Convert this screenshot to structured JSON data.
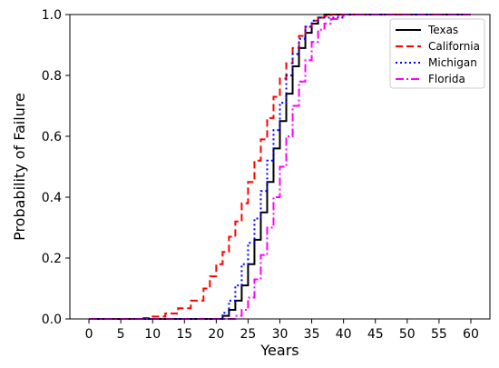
{
  "chart_data": {
    "type": "line",
    "title": "",
    "xlabel": "Years",
    "ylabel": "Probability of Failure",
    "xlim": [
      -3,
      63
    ],
    "ylim": [
      0,
      1
    ],
    "xticks": [
      0,
      5,
      10,
      15,
      20,
      25,
      30,
      35,
      40,
      45,
      50,
      55,
      60
    ],
    "yticks": [
      0.0,
      0.2,
      0.4,
      0.6,
      0.8,
      1.0
    ],
    "ytick_labels": [
      "0.0",
      "0.2",
      "0.4",
      "0.6",
      "0.8",
      "1.0"
    ],
    "grid": false,
    "legend_position": "top-right",
    "series": [
      {
        "name": "Texas",
        "color": "#000000",
        "dash": "solid",
        "x": [
          0,
          20,
          21,
          22,
          23,
          24,
          25,
          26,
          27,
          28,
          29,
          30,
          31,
          32,
          33,
          34,
          35,
          36,
          37,
          40,
          60
        ],
        "y": [
          0,
          0,
          0.01,
          0.03,
          0.06,
          0.11,
          0.18,
          0.26,
          0.35,
          0.45,
          0.56,
          0.65,
          0.74,
          0.83,
          0.89,
          0.94,
          0.97,
          0.99,
          1.0,
          1.0,
          1.0
        ]
      },
      {
        "name": "California",
        "color": "#ff0000",
        "dash": "dashed",
        "x": [
          0,
          5,
          8,
          10,
          12,
          14,
          16,
          18,
          19,
          20,
          21,
          22,
          23,
          24,
          25,
          26,
          27,
          28,
          29,
          30,
          31,
          32,
          33,
          34,
          35,
          36,
          37,
          38,
          40,
          60
        ],
        "y": [
          0,
          0,
          0.003,
          0.008,
          0.018,
          0.035,
          0.06,
          0.1,
          0.14,
          0.18,
          0.22,
          0.27,
          0.32,
          0.38,
          0.45,
          0.52,
          0.59,
          0.66,
          0.73,
          0.79,
          0.84,
          0.89,
          0.93,
          0.96,
          0.98,
          0.99,
          0.995,
          1.0,
          1.0,
          1.0
        ]
      },
      {
        "name": "Michigan",
        "color": "#0000ff",
        "dash": "dotted",
        "x": [
          0,
          20,
          21,
          22,
          23,
          24,
          25,
          26,
          27,
          28,
          29,
          30,
          31,
          32,
          33,
          34,
          35,
          36,
          40,
          60
        ],
        "y": [
          0,
          0,
          0.02,
          0.06,
          0.11,
          0.18,
          0.25,
          0.33,
          0.42,
          0.52,
          0.62,
          0.71,
          0.8,
          0.87,
          0.92,
          0.96,
          0.98,
          0.99,
          1.0,
          1.0
        ]
      },
      {
        "name": "Florida",
        "color": "#ff00ff",
        "dash": "dashdot",
        "x": [
          0,
          22,
          23,
          24,
          25,
          26,
          27,
          28,
          29,
          30,
          31,
          32,
          33,
          34,
          35,
          36,
          37,
          38,
          39,
          40,
          60
        ],
        "y": [
          0,
          0,
          0.01,
          0.03,
          0.07,
          0.13,
          0.21,
          0.3,
          0.4,
          0.5,
          0.6,
          0.7,
          0.78,
          0.85,
          0.91,
          0.95,
          0.97,
          0.985,
          0.995,
          1.0,
          1.0
        ]
      }
    ]
  }
}
